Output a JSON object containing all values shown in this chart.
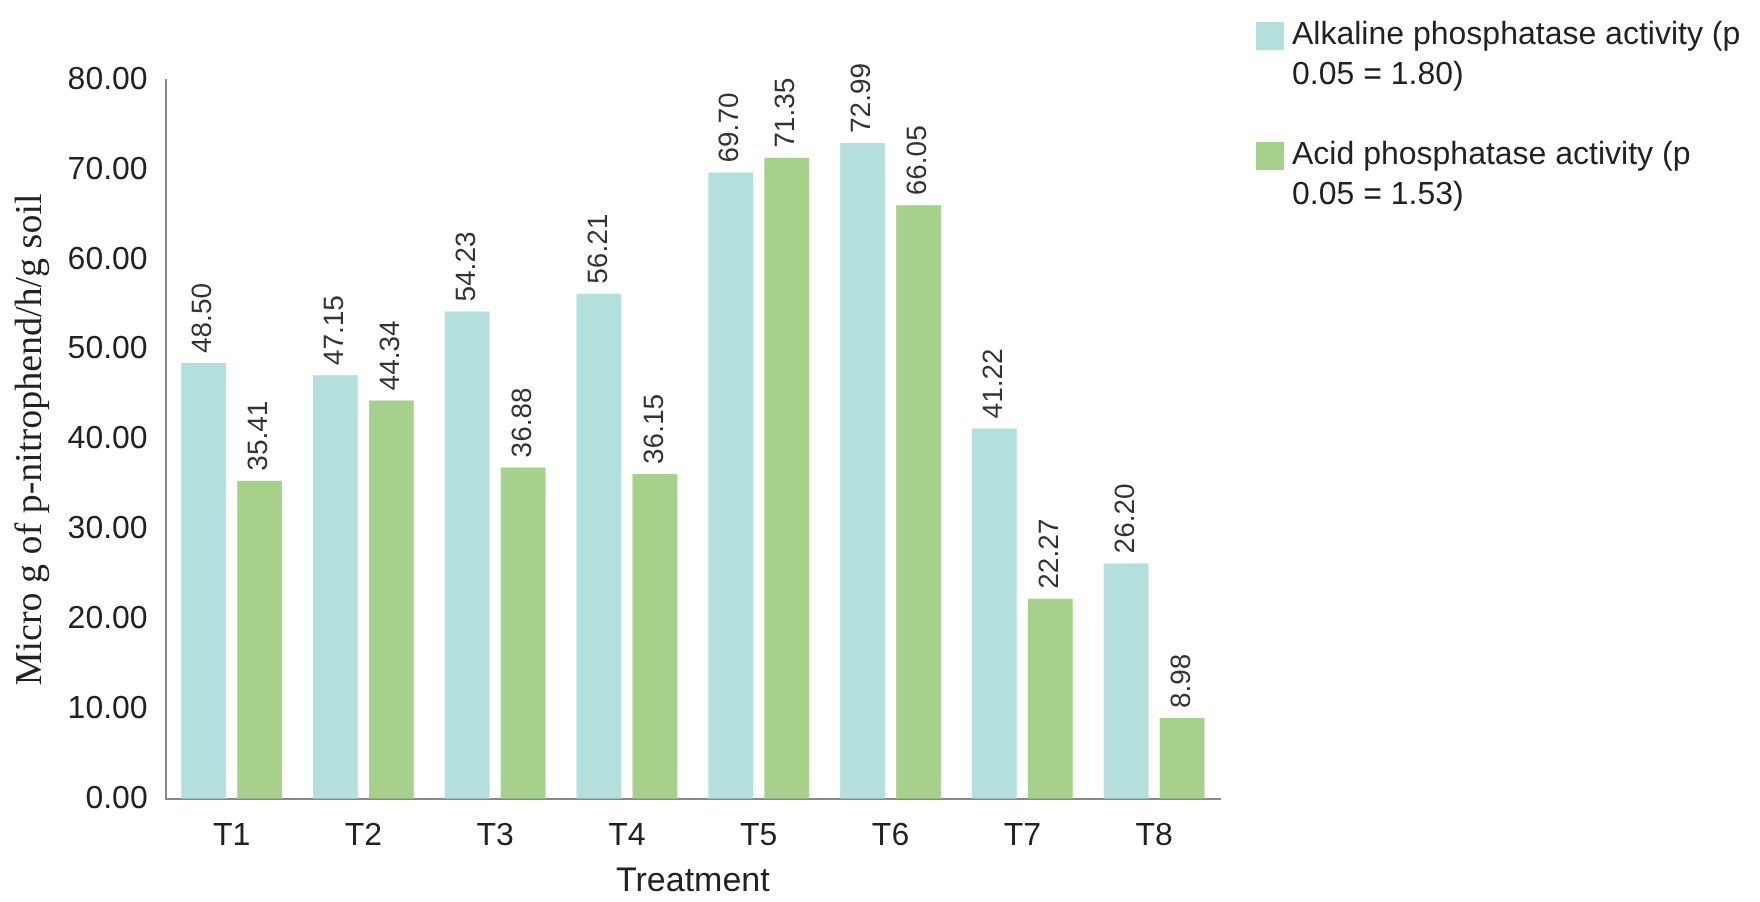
{
  "chart_data": {
    "type": "bar",
    "xlabel": "Treatment",
    "ylabel": "Micro g of p-nitrophend/h/g soil",
    "categories": [
      "T1",
      "T2",
      "T3",
      "T4",
      "T5",
      "T6",
      "T7",
      "T8"
    ],
    "series": [
      {
        "name": "Alkaline phosphatase activity (p 0.05 = 1.80)",
        "color": "#b3e0dc",
        "values": [
          48.5,
          47.15,
          54.23,
          56.21,
          69.7,
          72.99,
          41.22,
          26.2
        ],
        "value_labels": [
          "48.50",
          "47.15",
          "54.23",
          "56.21",
          "69.70",
          "72.99",
          "41.22",
          "26.20"
        ]
      },
      {
        "name": "Acid phosphatase activity (p 0.05 = 1.53)",
        "color": "#a6d18a",
        "values": [
          35.41,
          44.34,
          36.88,
          36.15,
          71.35,
          66.05,
          22.27,
          8.98
        ],
        "value_labels": [
          "35.41",
          "44.34",
          "36.88",
          "36.15",
          "71.35",
          "66.05",
          "22.27",
          "8.98"
        ]
      }
    ],
    "ylim": [
      0,
      80
    ],
    "yticks": [
      {
        "value": 0,
        "label": "0.00"
      },
      {
        "value": 10,
        "label": "10.00"
      },
      {
        "value": 20,
        "label": "20.00"
      },
      {
        "value": 30,
        "label": "30.00"
      },
      {
        "value": 40,
        "label": "40.00"
      },
      {
        "value": 50,
        "label": "50.00"
      },
      {
        "value": 60,
        "label": "60.00"
      },
      {
        "value": 70,
        "label": "70.00"
      },
      {
        "value": 80,
        "label": "80.00"
      }
    ],
    "grid": false,
    "legend": "top right"
  }
}
